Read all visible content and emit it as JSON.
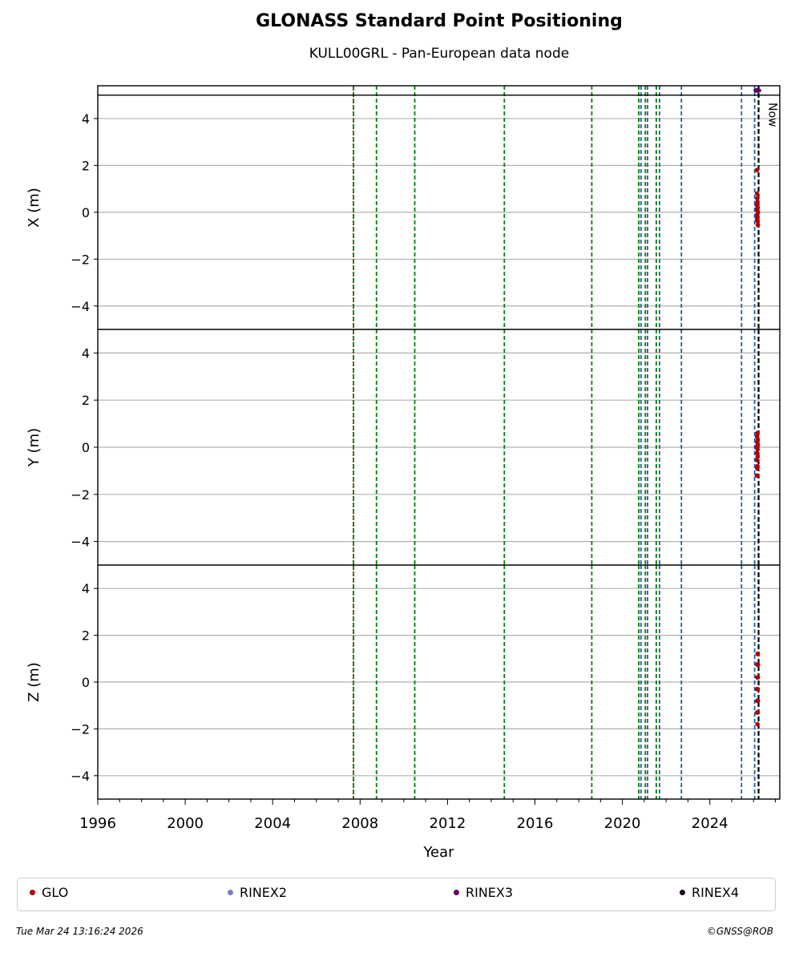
{
  "chart_data": {
    "type": "scatter",
    "title": "GLONASS Standard Point Positioning",
    "subtitle": "KULL00GRL - Pan-European data node",
    "xlabel": "Year",
    "xlim": [
      1996.0,
      2027.2
    ],
    "xticks": [
      "1996",
      "2000",
      "2004",
      "2008",
      "2012",
      "2016",
      "2020",
      "2024"
    ],
    "now_label": "Now",
    "now_year": 2026.23,
    "grid": true,
    "legend_position": "bottom",
    "panels": [
      {
        "ylabel": "X (m)",
        "ylim": [
          -5.0,
          5.4
        ],
        "yticks": [
          4,
          2,
          0,
          -2,
          -4
        ],
        "points": [
          {
            "x": 2026.15,
            "y": 1.8
          },
          {
            "x": 2026.16,
            "y": 0.8
          },
          {
            "x": 2026.17,
            "y": 0.6
          },
          {
            "x": 2026.18,
            "y": 0.45
          },
          {
            "x": 2026.15,
            "y": 0.3
          },
          {
            "x": 2026.19,
            "y": 0.2
          },
          {
            "x": 2026.16,
            "y": 0.1
          },
          {
            "x": 2026.2,
            "y": 0.0
          },
          {
            "x": 2026.17,
            "y": -0.1
          },
          {
            "x": 2026.18,
            "y": -0.2
          },
          {
            "x": 2026.16,
            "y": -0.3
          },
          {
            "x": 2026.19,
            "y": -0.4
          },
          {
            "x": 2026.2,
            "y": -0.55
          }
        ]
      },
      {
        "ylabel": "Y (m)",
        "ylim": [
          -5.0,
          5.0
        ],
        "yticks": [
          4,
          2,
          0,
          -2,
          -4
        ],
        "points": [
          {
            "x": 2026.18,
            "y": 0.6
          },
          {
            "x": 2026.16,
            "y": 0.45
          },
          {
            "x": 2026.19,
            "y": 0.3
          },
          {
            "x": 2026.17,
            "y": 0.2
          },
          {
            "x": 2026.2,
            "y": 0.1
          },
          {
            "x": 2026.15,
            "y": 0.0
          },
          {
            "x": 2026.18,
            "y": -0.1
          },
          {
            "x": 2026.17,
            "y": -0.25
          },
          {
            "x": 2026.19,
            "y": -0.4
          },
          {
            "x": 2026.16,
            "y": -0.55
          },
          {
            "x": 2026.18,
            "y": -0.8
          },
          {
            "x": 2026.17,
            "y": -0.9
          },
          {
            "x": 2026.15,
            "y": -1.2
          }
        ]
      },
      {
        "ylabel": "Z (m)",
        "ylim": [
          -5.0,
          5.0
        ],
        "yticks": [
          4,
          2,
          0,
          -2,
          -4
        ],
        "points": [
          {
            "x": 2026.2,
            "y": 1.2
          },
          {
            "x": 2026.18,
            "y": 1.2
          },
          {
            "x": 2026.16,
            "y": 0.75
          },
          {
            "x": 2026.2,
            "y": 0.75
          },
          {
            "x": 2026.17,
            "y": 0.2
          },
          {
            "x": 2026.2,
            "y": 0.2
          },
          {
            "x": 2026.16,
            "y": -0.3
          },
          {
            "x": 2026.19,
            "y": -0.3
          },
          {
            "x": 2026.17,
            "y": -0.8
          },
          {
            "x": 2026.2,
            "y": -0.8
          },
          {
            "x": 2026.16,
            "y": -1.3
          },
          {
            "x": 2026.19,
            "y": -1.3
          },
          {
            "x": 2026.18,
            "y": -1.8
          }
        ]
      }
    ],
    "rinex3_marker": {
      "x": 2026.1,
      "y": 5.2
    },
    "event_lines": [
      {
        "x": 2007.7,
        "color": "#cc0000",
        "style": "dotted"
      },
      {
        "x": 2007.7,
        "color": "#008000",
        "style": "dashed"
      },
      {
        "x": 2008.75,
        "color": "#008000",
        "style": "dashed"
      },
      {
        "x": 2010.5,
        "color": "#008000",
        "style": "dashed"
      },
      {
        "x": 2014.6,
        "color": "#008000",
        "style": "dashed"
      },
      {
        "x": 2018.6,
        "color": "#008000",
        "style": "dashed"
      },
      {
        "x": 2020.75,
        "color": "#008000",
        "style": "dashed"
      },
      {
        "x": 2020.85,
        "color": "#1f5fa8",
        "style": "dashed"
      },
      {
        "x": 2021.05,
        "color": "#008000",
        "style": "dashed"
      },
      {
        "x": 2021.15,
        "color": "#1f5fa8",
        "style": "dashed"
      },
      {
        "x": 2021.55,
        "color": "#008000",
        "style": "dashed"
      },
      {
        "x": 2021.7,
        "color": "#1f5fa8",
        "style": "dashed"
      },
      {
        "x": 2022.7,
        "color": "#1f5fa8",
        "style": "dashed"
      },
      {
        "x": 2025.45,
        "color": "#1f5fa8",
        "style": "dashed"
      },
      {
        "x": 2026.05,
        "color": "#1f5fa8",
        "style": "dashed"
      }
    ],
    "legend": [
      {
        "label": "GLO",
        "color": "#b00000"
      },
      {
        "label": "RINEX2",
        "color": "#7b7bbd"
      },
      {
        "label": "RINEX3",
        "color": "#5e0060"
      },
      {
        "label": "RINEX4",
        "color": "#1a0a1a"
      }
    ],
    "colors": {
      "glo": "#b00000",
      "rinex3": "#5e0060",
      "now_line": "#000000",
      "grid": "#b0b0b0"
    }
  },
  "footer": {
    "date": "Tue Mar 24 13:16:24 2026",
    "credit": "©GNSS@ROB"
  }
}
